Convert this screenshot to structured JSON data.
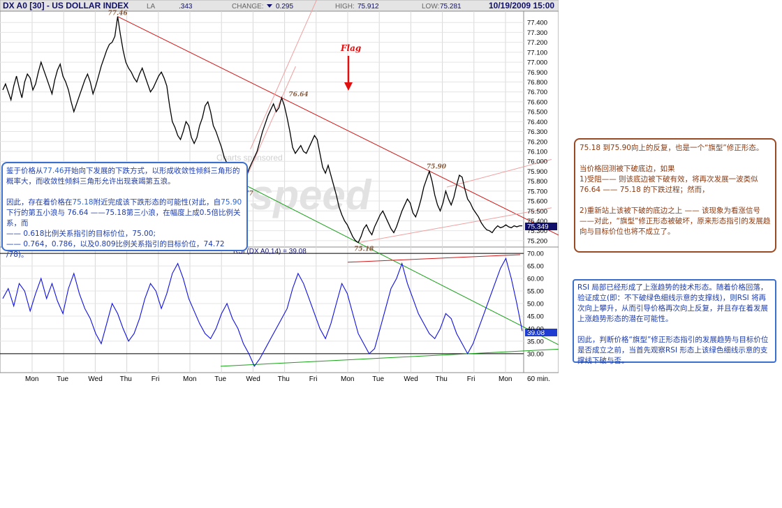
{
  "header": {
    "symbol": "DX A0 [30] - US DOLLAR INDEX",
    "last_label": "LA",
    "last_value": ".343",
    "change_label": "CHANGE:",
    "change_value": "0.295",
    "high_label": "HIGH:",
    "high_value": "75.912",
    "low_label": "LOW:",
    "low_value": "75.281",
    "datetime": "10/19/2009 15:00"
  },
  "colors": {
    "price_line": "#000000",
    "rsi_line": "#1010e0",
    "resistance": "#d01818",
    "support": "#18a018",
    "channel": "#f0a0a0",
    "flag": "#e01010",
    "note_blue": "#3a6fd0",
    "note_brown": "#9a4a22"
  },
  "watermark": {
    "sponsor": "Charts sponsored",
    "brand": "speed"
  },
  "chart_data": [
    {
      "type": "line",
      "name": "price",
      "ylim": [
        75.15,
        77.5
      ],
      "yticks": [
        75.2,
        75.3,
        75.4,
        75.5,
        75.6,
        75.7,
        75.8,
        75.9,
        76.0,
        76.1,
        76.2,
        76.3,
        76.4,
        76.5,
        76.6,
        76.7,
        76.8,
        76.9,
        77.0,
        77.1,
        77.2,
        77.3,
        77.4
      ],
      "ytick_labels": [
        "75.200",
        "75.300",
        "75.400",
        "75.500",
        "75.600",
        "75.700",
        "75.800",
        "75.900",
        "76.000",
        "76.100",
        "76.200",
        "76.300",
        "76.400",
        "76.500",
        "76.600",
        "76.700",
        "76.800",
        "76.900",
        "77.000",
        "77.100",
        "77.200",
        "77.300",
        "77.400"
      ],
      "x": [
        0,
        1,
        2,
        3,
        4,
        5,
        6,
        7,
        8,
        9,
        10,
        11,
        12,
        13,
        14,
        15,
        16,
        17,
        18,
        19,
        20,
        21,
        22,
        23,
        24,
        25,
        26,
        27,
        28,
        29,
        30,
        31,
        32,
        33,
        34,
        35,
        36,
        37,
        38,
        39,
        40,
        41,
        42,
        43,
        44,
        45,
        46,
        47,
        48,
        49,
        50,
        51,
        52,
        53,
        54,
        55,
        56,
        57,
        58,
        59,
        60,
        61,
        62,
        63,
        64,
        65,
        66,
        67,
        68,
        69,
        70,
        71,
        72,
        73,
        74,
        75,
        76,
        77,
        78,
        79,
        80,
        81,
        82,
        83,
        84,
        85,
        86,
        87,
        88,
        89,
        90,
        91,
        92,
        93,
        94,
        95,
        96,
        97,
        98,
        99,
        100,
        101,
        102,
        103,
        104,
        105,
        106,
        107,
        108,
        109,
        110,
        111,
        112,
        113,
        114,
        115,
        116,
        117,
        118,
        119,
        120,
        121,
        122,
        123,
        124,
        125,
        126,
        127,
        128,
        129,
        130,
        131,
        132,
        133,
        134,
        135,
        136,
        137,
        138,
        139,
        140,
        141,
        142,
        143,
        144,
        145,
        146,
        147,
        148,
        149,
        150,
        151,
        152,
        153,
        154,
        155,
        156,
        157,
        158,
        159,
        160,
        161,
        162,
        163,
        164,
        165,
        166,
        167,
        168,
        169,
        170,
        171,
        172,
        173,
        174,
        175,
        176,
        177,
        178,
        179,
        180,
        181,
        182,
        183,
        184,
        185,
        186,
        187,
        188,
        189,
        190
      ],
      "values": [
        76.72,
        76.78,
        76.7,
        76.62,
        76.76,
        76.86,
        76.74,
        76.64,
        76.8,
        76.88,
        76.84,
        76.72,
        76.78,
        76.9,
        77.0,
        76.92,
        76.84,
        76.76,
        76.68,
        76.82,
        76.92,
        76.98,
        76.86,
        76.8,
        76.72,
        76.6,
        76.5,
        76.58,
        76.66,
        76.74,
        76.82,
        76.88,
        76.8,
        76.68,
        76.76,
        76.86,
        76.96,
        77.04,
        77.12,
        77.18,
        77.2,
        77.26,
        77.46,
        77.28,
        77.12,
        77.0,
        76.94,
        76.9,
        76.84,
        76.8,
        76.88,
        76.94,
        76.86,
        76.78,
        76.7,
        76.74,
        76.8,
        76.86,
        76.9,
        76.84,
        76.76,
        76.56,
        76.4,
        76.34,
        76.26,
        76.22,
        76.3,
        76.4,
        76.36,
        76.24,
        76.18,
        76.24,
        76.36,
        76.44,
        76.56,
        76.6,
        76.5,
        76.36,
        76.3,
        76.22,
        76.14,
        76.04,
        75.98,
        75.92,
        75.88,
        75.96,
        75.9,
        75.84,
        75.77,
        75.84,
        75.92,
        75.98,
        76.04,
        76.1,
        76.2,
        76.3,
        76.38,
        76.46,
        76.52,
        76.58,
        76.5,
        76.54,
        76.64,
        76.56,
        76.44,
        76.3,
        76.14,
        76.08,
        76.12,
        76.16,
        76.1,
        76.08,
        76.14,
        76.2,
        76.26,
        76.22,
        76.08,
        75.94,
        75.88,
        75.96,
        75.86,
        75.76,
        75.66,
        75.54,
        75.46,
        75.4,
        75.36,
        75.3,
        75.24,
        75.2,
        75.18,
        75.24,
        75.32,
        75.36,
        75.3,
        75.26,
        75.34,
        75.4,
        75.46,
        75.5,
        75.44,
        75.38,
        75.32,
        75.28,
        75.34,
        75.42,
        75.5,
        75.56,
        75.62,
        75.58,
        75.48,
        75.44,
        75.52,
        75.62,
        75.74,
        75.82,
        75.9,
        75.8,
        75.66,
        75.56,
        75.5,
        75.58,
        75.7,
        75.62,
        75.56,
        75.64,
        75.76,
        75.86,
        75.84,
        75.72,
        75.62,
        75.58,
        75.52,
        75.48,
        75.44,
        75.38,
        75.34,
        75.31,
        75.3,
        75.28,
        75.32,
        75.35,
        75.33,
        75.34,
        75.36,
        75.34,
        75.33,
        75.35,
        75.34,
        75.35,
        75.35
      ],
      "last_value_label": "75.349",
      "annotations": [
        "77.46",
        "76.64",
        "75.77",
        "75.90",
        "75.18"
      ],
      "flag_label": "Flag"
    },
    {
      "type": "line",
      "name": "RSI",
      "title": "RSI (DX A0,14) = 39.08",
      "ylim": [
        23,
        72
      ],
      "yticks": [
        30,
        35,
        40,
        45,
        50,
        55,
        60,
        65,
        70
      ],
      "ytick_labels": [
        "30.00",
        "35.00",
        "40.00",
        "45.00",
        "50.00",
        "55.00",
        "60.00",
        "65.00",
        "70.00"
      ],
      "reference_lines": [
        70,
        30
      ],
      "x": [
        0,
        1,
        2,
        3,
        4,
        5,
        6,
        7,
        8,
        9,
        10,
        11,
        12,
        13,
        14,
        15,
        16,
        17,
        18,
        19,
        20,
        21,
        22,
        23,
        24,
        25,
        26,
        27,
        28,
        29,
        30,
        31,
        32,
        33,
        34,
        35,
        36,
        37,
        38,
        39,
        40,
        41,
        42,
        43,
        44,
        45,
        46,
        47,
        48,
        49,
        50,
        51,
        52,
        53,
        54,
        55,
        56,
        57,
        58,
        59,
        60,
        61,
        62,
        63,
        64,
        65,
        66,
        67,
        68,
        69,
        70,
        71,
        72,
        73,
        74,
        75,
        76,
        77,
        78,
        79,
        80,
        81,
        82,
        83,
        84,
        85,
        86,
        87,
        88,
        89,
        90,
        91,
        92,
        93,
        94,
        95
      ],
      "values": [
        52,
        56,
        49,
        58,
        55,
        47,
        54,
        60,
        52,
        58,
        51,
        46,
        56,
        62,
        54,
        48,
        44,
        38,
        34,
        42,
        50,
        46,
        40,
        35,
        38,
        44,
        52,
        58,
        55,
        48,
        54,
        62,
        66,
        60,
        52,
        47,
        42,
        38,
        36,
        40,
        46,
        50,
        44,
        40,
        34,
        30,
        25,
        28,
        32,
        36,
        40,
        44,
        48,
        56,
        62,
        58,
        52,
        46,
        40,
        36,
        42,
        50,
        58,
        54,
        46,
        38,
        34,
        30,
        32,
        40,
        48,
        56,
        60,
        66,
        58,
        52,
        46,
        42,
        38,
        36,
        40,
        46,
        44,
        38,
        34,
        30,
        34,
        40,
        46,
        52,
        58,
        64,
        68,
        60,
        50,
        39
      ],
      "last_value_label": "39.08"
    }
  ],
  "x_axis": {
    "labels": [
      "Mon",
      "Tue",
      "Wed",
      "Thu",
      "Fri",
      "Mon",
      "Tue",
      "Wed",
      "Thu",
      "Fri",
      "Mon",
      "Tue",
      "Wed",
      "Thu",
      "Fri",
      "Mon"
    ],
    "interval": "60 min."
  },
  "notes": {
    "left": [
      {
        "text": "鉴于价格从"
      },
      {
        "text": "77.46",
        "hl": true
      },
      {
        "text": "开始向下发展的下跌方式，以形成收敛性倾斜三角形的概率大，而收敛性倾斜三角形允许出现衰竭第五浪。\n\n因此，存在着价格在"
      },
      {
        "text": "75.18",
        "hl": true
      },
      {
        "text": "附近完成该下跌形态的可能性(对此，自"
      },
      {
        "text": "75.90",
        "hl": true
      },
      {
        "text": "下行的第五小浪与 76.64 ——75.18第三小浪，在幅度上成0.5倍比例关系，而\n—— 0.618比例关系指引的目标价位，75.00;\n—— 0.764，0.786，以及0.809比例关系指引的目标价位，74.72 /78)。"
      }
    ],
    "right_top": "75.18 到75.90向上的反复，也是一个“旗型”修正形态。\n\n当价格回测被下破底边，如果\n1)受阻—— 则该底边被下破有效，将再次发展一波类似76.64 —— 75.18 的下跌过程；然而，\n\n2)重新站上该被下破的底边之上 —— 该现象为看涨信号 ——对此，“旗型”修正形态被破坏，原来形态指引的发展趋向与目标价位也将不成立了。",
    "right_bottom": "RSI 局部已经形成了上涨趋势的技术形态。随着价格回落，验证成立(即：不下破绿色细线示意的支撑线)，则RSI 将再次向上攀升，从而引导价格再次向上反复，并且存在着发展上涨趋势形态的潜在可能性。\n\n因此，判断价格“旗型”修正形态指引的发展趋势与目标价位是否成立之前，当首先观察RSI 形态上该绿色细线示意的支撑线下破与否。"
  }
}
